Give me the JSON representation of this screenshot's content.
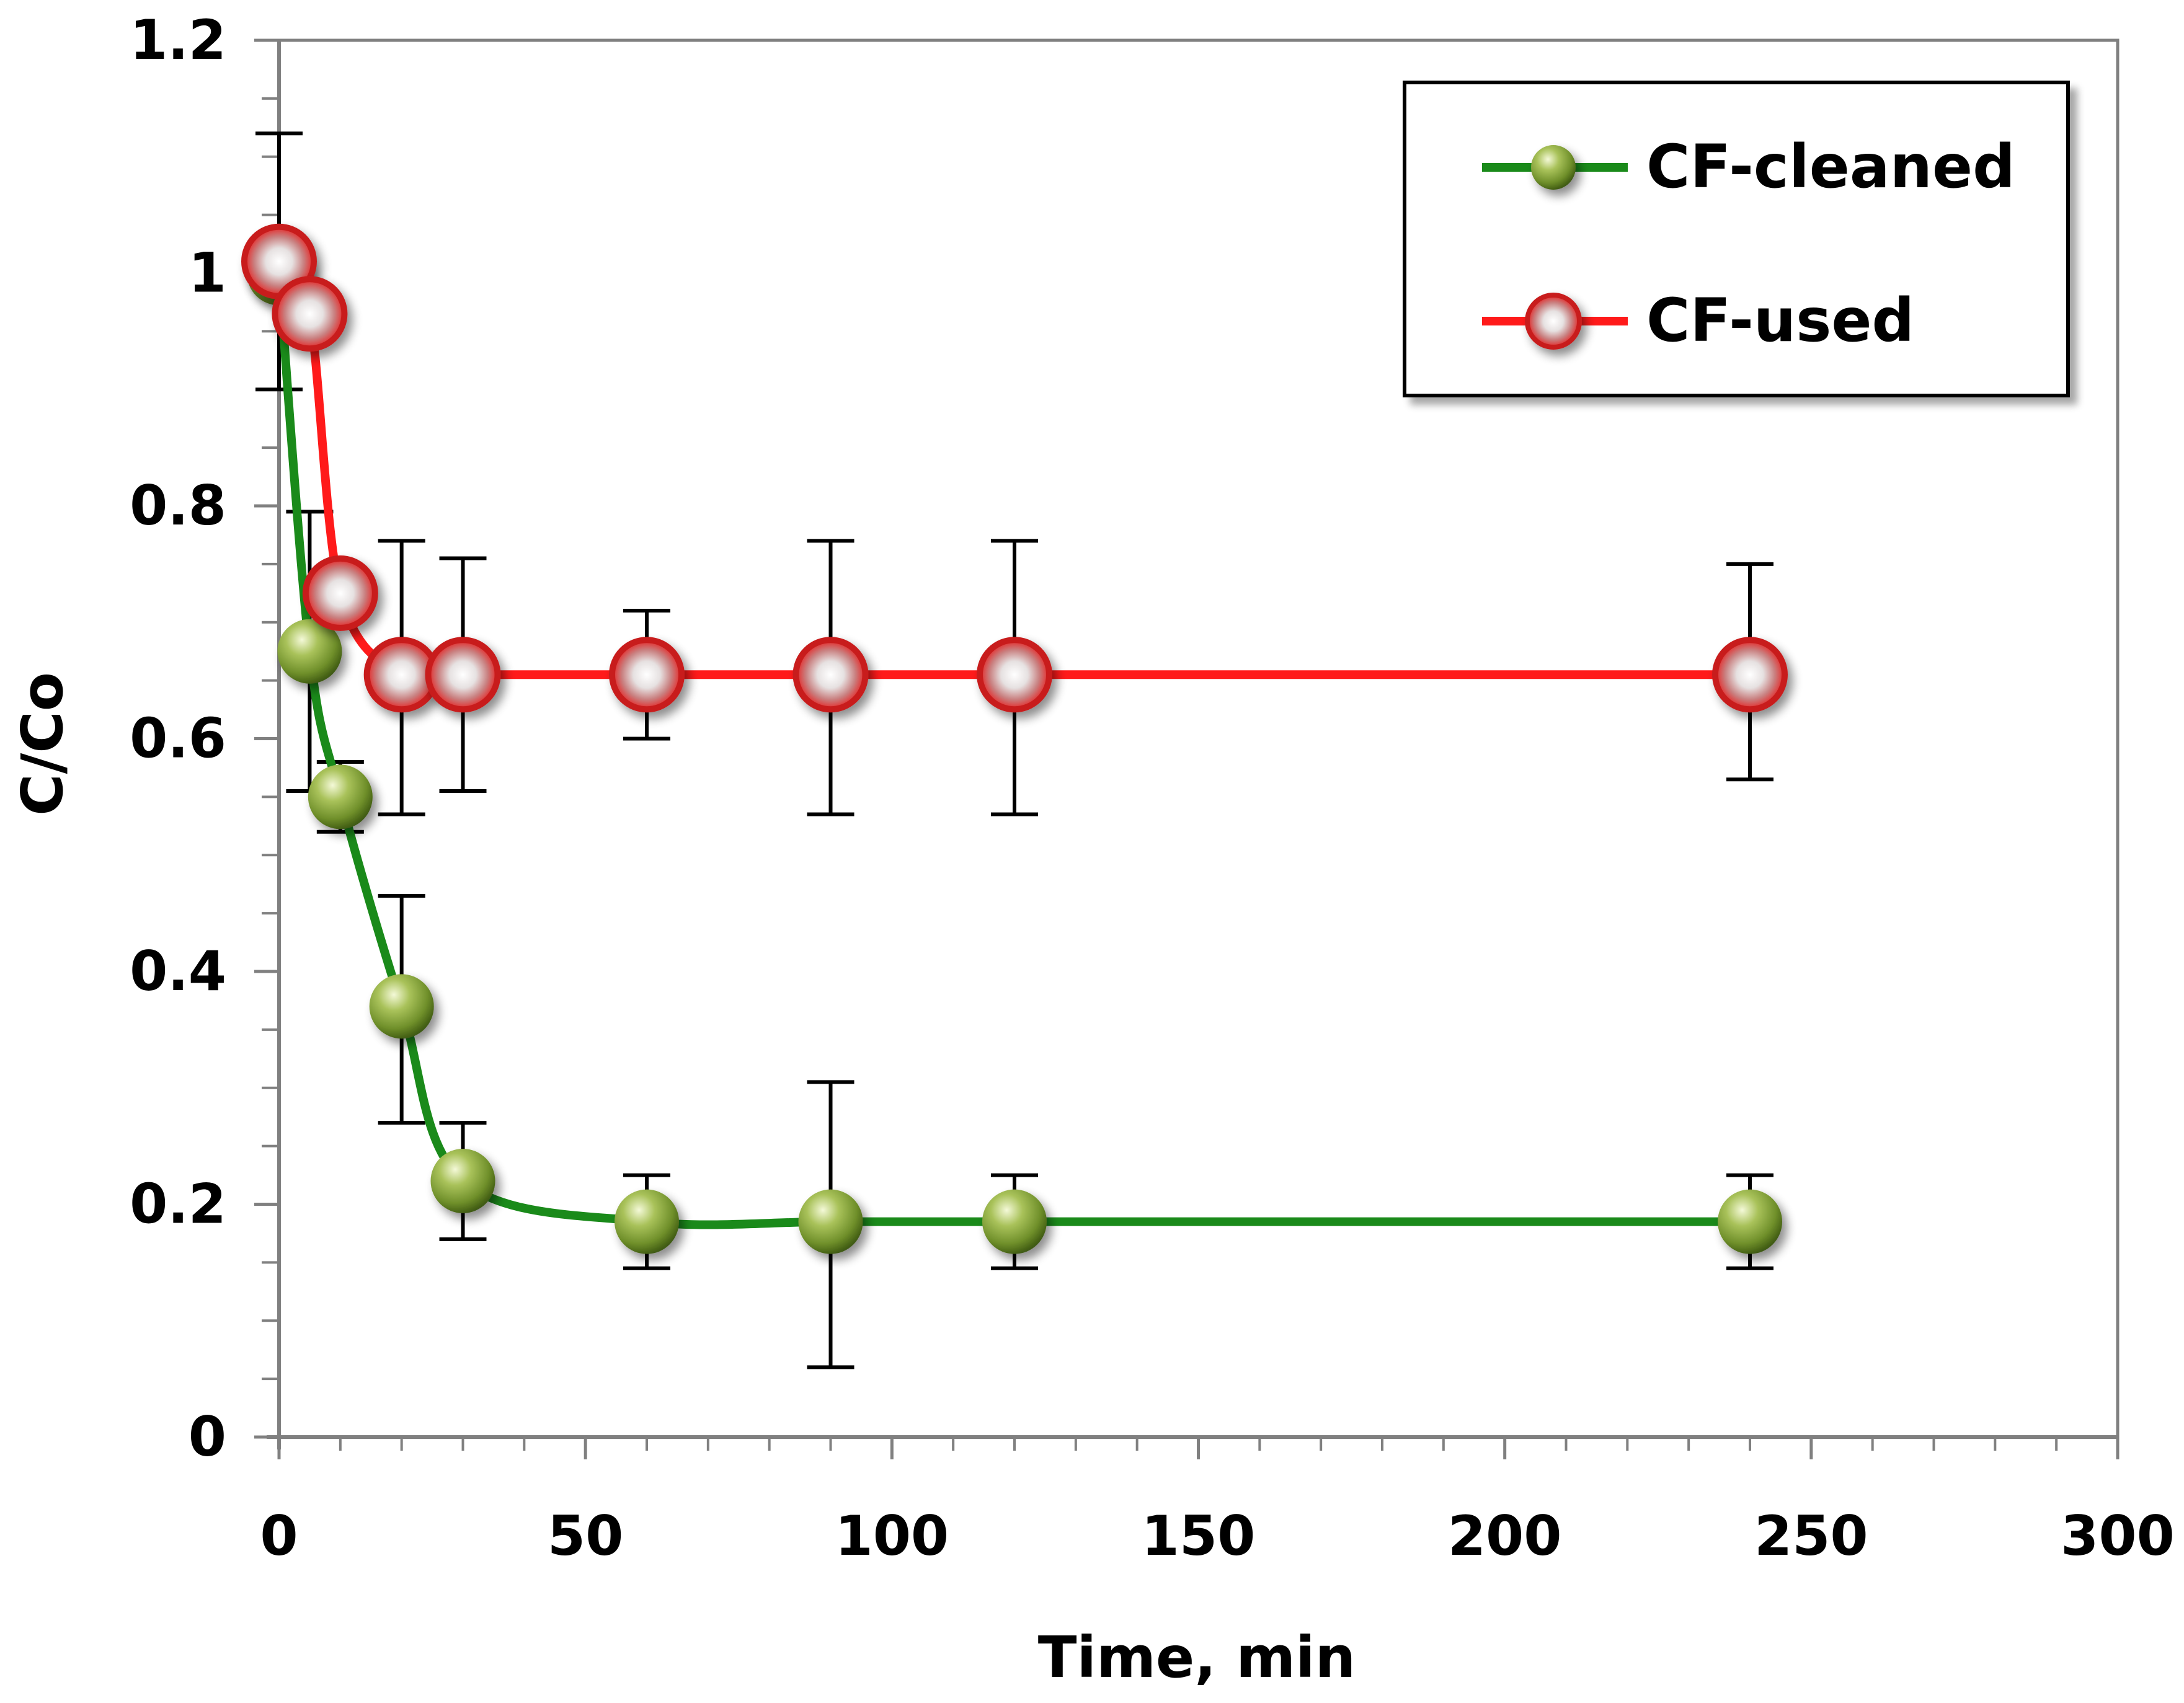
{
  "chart_data": {
    "type": "line",
    "title": "",
    "xlabel": "Time, min",
    "ylabel": "C/Co",
    "xlim": [
      0,
      300
    ],
    "ylim": [
      0,
      1.2
    ],
    "x_ticks": [
      0,
      50,
      100,
      150,
      200,
      250,
      300
    ],
    "x_tick_labels": [
      "0",
      "50",
      "100",
      "150",
      "200",
      "250",
      "300"
    ],
    "y_ticks": [
      0,
      0.2,
      0.4,
      0.6,
      0.8,
      1.0,
      1.2
    ],
    "y_tick_labels": [
      "0",
      "0.2",
      "0.4",
      "0.6",
      "0.8",
      "1",
      "1.2"
    ],
    "x_minor_step": 10,
    "y_minor_step": 0.05,
    "grid": false,
    "legend_position": "top-right",
    "series": [
      {
        "name": "CF-cleaned",
        "color": "#1a8a1a",
        "marker_color": "#8fae3c",
        "x": [
          0,
          5,
          10,
          20,
          30,
          60,
          90,
          120,
          240
        ],
        "y": [
          1.0,
          0.675,
          0.55,
          0.37,
          0.22,
          0.185,
          0.185,
          0.185,
          0.185
        ],
        "err_low": [
          0.1,
          0.12,
          0.03,
          0.1,
          0.05,
          0.04,
          0.125,
          0.04,
          0.04
        ],
        "err_high": [
          0.12,
          0.12,
          0.03,
          0.095,
          0.05,
          0.04,
          0.12,
          0.04,
          0.04
        ]
      },
      {
        "name": "CF-used",
        "color": "#ff1a1a",
        "marker_color": "#e05050",
        "x": [
          0,
          5,
          10,
          20,
          30,
          60,
          90,
          120,
          240
        ],
        "y": [
          1.01,
          0.965,
          0.725,
          0.655,
          0.655,
          0.655,
          0.655,
          0.655,
          0.655
        ],
        "err_low": [
          0.0,
          0.0,
          0.0,
          0.12,
          0.1,
          0.055,
          0.12,
          0.12,
          0.09
        ],
        "err_high": [
          0.0,
          0.0,
          0.0,
          0.115,
          0.1,
          0.055,
          0.115,
          0.115,
          0.095
        ]
      }
    ]
  }
}
